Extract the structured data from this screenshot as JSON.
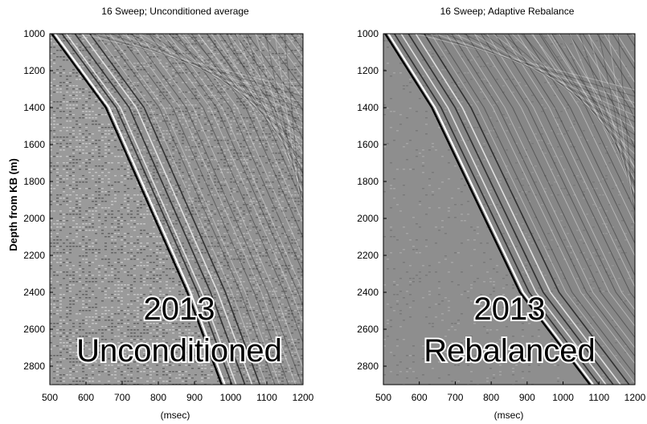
{
  "chart_data": [
    {
      "type": "heatmap",
      "title": "16 Sweep; Unconditioned average",
      "xlabel": "(msec)",
      "ylabel": "Depth from KB (m)",
      "xlim": [
        500,
        1200
      ],
      "ylim": [
        1000,
        2900
      ],
      "x_ticks": [
        "500",
        "600",
        "700",
        "800",
        "900",
        "1000",
        "1100",
        "1200"
      ],
      "y_ticks": [
        "1000",
        "1200",
        "1400",
        "1600",
        "1800",
        "2000",
        "2200",
        "2400",
        "2600",
        "2800"
      ],
      "annotation": [
        "2013",
        "Unconditioned"
      ],
      "first_break": {
        "depth": [
          1000,
          1400,
          2400,
          2900
        ],
        "time": [
          505,
          655,
          880,
          975
        ]
      },
      "noise_level": "high",
      "background": "#9a9a9a"
    },
    {
      "type": "heatmap",
      "title": "16 Sweep; Adaptive Rebalance",
      "xlabel": "(msec)",
      "ylabel": "",
      "xlim": [
        500,
        1200
      ],
      "ylim": [
        1000,
        2900
      ],
      "x_ticks": [
        "500",
        "600",
        "700",
        "800",
        "900",
        "1000",
        "1100",
        "1200"
      ],
      "y_ticks": [
        "1000",
        "1200",
        "1400",
        "1600",
        "1800",
        "2000",
        "2200",
        "2400",
        "2600",
        "2800"
      ],
      "annotation": [
        "2013",
        "Rebalanced"
      ],
      "first_break": {
        "depth": [
          1000,
          1400,
          2400,
          2900
        ],
        "time": [
          505,
          635,
          880,
          1075
        ]
      },
      "noise_level": "low",
      "background": "#8e8e8e"
    }
  ]
}
